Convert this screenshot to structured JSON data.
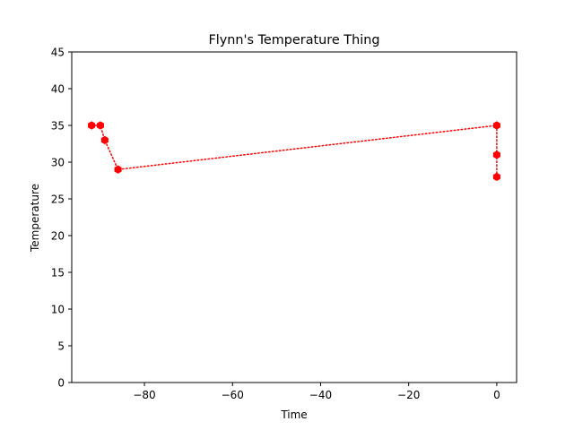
{
  "chart_data": {
    "type": "line",
    "title": "Flynn's Temperature Thing",
    "xlabel": "Time",
    "ylabel": "Temperature",
    "xlim": [
      -96.5,
      4.5
    ],
    "ylim": [
      0,
      45
    ],
    "xticks": [
      -80,
      -60,
      -40,
      -20,
      0
    ],
    "xtick_labels": [
      "−80",
      "−60",
      "−40",
      "−20",
      "0"
    ],
    "yticks": [
      0,
      5,
      10,
      15,
      20,
      25,
      30,
      35,
      40,
      45
    ],
    "ytick_labels": [
      "0",
      "5",
      "10",
      "15",
      "20",
      "25",
      "30",
      "35",
      "40",
      "45"
    ],
    "grid": false,
    "series": [
      {
        "color": "#ff0000",
        "line_style": "dotted",
        "marker": "hexagon",
        "points": [
          {
            "x": -92,
            "y": 35
          },
          {
            "x": -90,
            "y": 35
          },
          {
            "x": -89,
            "y": 33
          },
          {
            "x": -86,
            "y": 29
          },
          {
            "x": 0,
            "y": 35
          },
          {
            "x": 0,
            "y": 31
          },
          {
            "x": 0,
            "y": 28
          }
        ]
      }
    ]
  }
}
